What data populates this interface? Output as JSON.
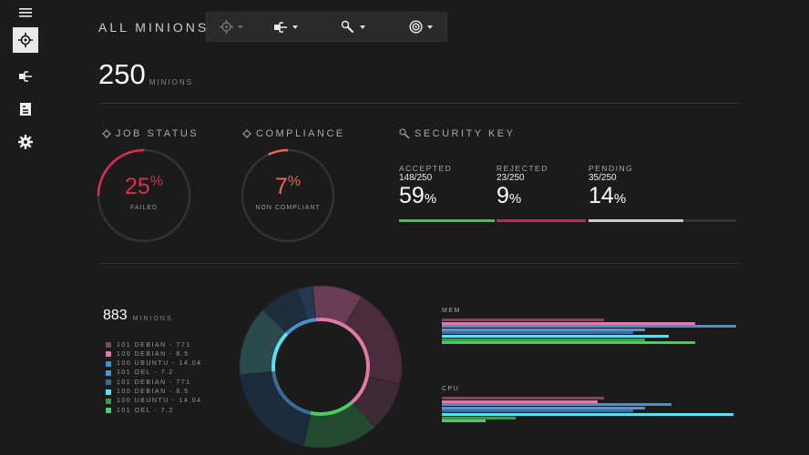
{
  "sidebar": {
    "items": [
      {
        "icon": "menu-icon"
      },
      {
        "icon": "crosshair-icon",
        "active": true
      },
      {
        "icon": "minion-connect-icon"
      },
      {
        "icon": "document-icon"
      },
      {
        "icon": "gear-icon"
      }
    ]
  },
  "header": {
    "title": "ALL MINIONS",
    "toolbar": [
      {
        "icon": "crosshair-icon"
      },
      {
        "icon": "minion-connect-icon"
      },
      {
        "icon": "key-icon"
      },
      {
        "icon": "target-icon"
      }
    ]
  },
  "summary": {
    "count": "250",
    "unit": "MINIONS"
  },
  "job_status": {
    "label": "JOB STATUS",
    "percent": 25,
    "pct_text": "25",
    "pct_sign": "%",
    "sublabel": "FAILED",
    "color": "#d8304e"
  },
  "compliance": {
    "label": "COMPLIANCE",
    "percent": 7,
    "pct_text": "7",
    "pct_sign": "%",
    "sublabel": "NON COMPLIANT",
    "color": "#e86a48"
  },
  "security_key": {
    "label": "SECURITY KEY",
    "items": [
      {
        "label": "ACCEPTED",
        "count": "148/250",
        "pct": "59",
        "sign": "%",
        "color": "#3fc25c"
      },
      {
        "label": "REJECTED",
        "count": "23/250",
        "pct": "9",
        "sign": "%",
        "color": "#c6284a"
      },
      {
        "label": "PENDING",
        "count": "35/250",
        "pct": "14",
        "sign": "%",
        "color": "#cccccc"
      }
    ]
  },
  "distribution": {
    "count": "883",
    "unit": "MINIONS",
    "legend": [
      {
        "label": "101 DEBIAN - 771",
        "color": "#7a4a62"
      },
      {
        "label": "100 DEBIAN - 8.5",
        "color": "#e07aa8"
      },
      {
        "label": "100 UBUNTU - 14.04",
        "color": "#4a8fd0"
      },
      {
        "label": "101 OEL  - 7.2",
        "color": "#4f94dc"
      },
      {
        "label": "101 DEBIAN - 771",
        "color": "#3a6c9a"
      },
      {
        "label": "100 DEBIAN - 8.5",
        "color": "#5ce0f0"
      },
      {
        "label": "100 UBUNTU - 14.04",
        "color": "#3c9a50"
      },
      {
        "label": "101 OEL  - 7.2",
        "color": "#4ccc60"
      }
    ]
  },
  "chart_data": [
    {
      "type": "pie",
      "variant": "donut",
      "segments": [
        {
          "color": "#6a3d52",
          "value": 10
        },
        {
          "color": "#4a2c3a",
          "value": 20
        },
        {
          "color": "#3e2a35",
          "value": 10
        },
        {
          "color": "#254a32",
          "value": 15
        },
        {
          "color": "#1c2c3c",
          "value": 20
        },
        {
          "color": "#2a4a4c",
          "value": 14
        },
        {
          "color": "#1e2e3c",
          "value": 8
        },
        {
          "color": "#223a50",
          "value": 3
        }
      ]
    },
    {
      "type": "bar",
      "orientation": "horizontal",
      "label": "MEM",
      "values": [
        55,
        86,
        100,
        69,
        65,
        77,
        69,
        86
      ]
    },
    {
      "type": "bar",
      "orientation": "horizontal",
      "label": "CPU",
      "values": [
        55,
        53,
        78,
        69,
        65,
        99,
        25,
        15
      ]
    }
  ]
}
